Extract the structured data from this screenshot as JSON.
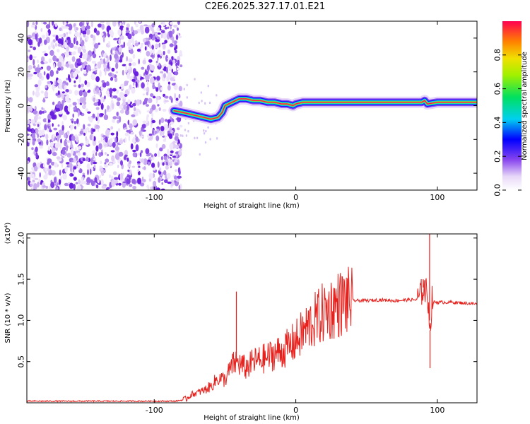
{
  "title": "C2E6.2025.327.17.01.E21",
  "chart_data": [
    {
      "type": "heatmap",
      "xlabel": "Height of straight line (km)",
      "ylabel": "Frequency (Hz)",
      "xlim": [
        -190,
        128
      ],
      "ylim": [
        -50,
        50
      ],
      "xticks": [
        -100,
        0,
        100
      ],
      "xtick_labels": [
        "-100",
        "0",
        "100"
      ],
      "yticks": [
        -40,
        -20,
        0,
        20,
        40
      ],
      "ytick_labels": [
        "-40",
        "-20",
        "0",
        "20",
        "40"
      ],
      "noise_region_x": [
        -190,
        -84
      ],
      "signal_track": {
        "x": [
          -86,
          -80,
          -75,
          -70,
          -65,
          -60,
          -55,
          -52,
          -50,
          -45,
          -40,
          -35,
          -30,
          -25,
          -20,
          -15,
          -10,
          -6,
          -2,
          0,
          5,
          20,
          40,
          60,
          80,
          89,
          91,
          93,
          100,
          128
        ],
        "hz": [
          -3,
          -4,
          -5,
          -6,
          -7,
          -8,
          -7,
          -4,
          0,
          2,
          4,
          4,
          3,
          3,
          2,
          2,
          1,
          1,
          0,
          1,
          2,
          2,
          2,
          2,
          2,
          2,
          3,
          1,
          2,
          2
        ]
      },
      "colorbar": {
        "label": "Normalized spectral amplitude",
        "range": [
          0,
          1
        ],
        "ticks": [
          0.0,
          0.2,
          0.4,
          0.6,
          0.8
        ],
        "tick_labels": [
          "0.0",
          "0.2",
          "0.4",
          "0.6",
          "0.8"
        ]
      }
    },
    {
      "type": "line",
      "xlabel": "Height of straight line (km)",
      "ylabel": "SNR (10 * v/v)",
      "scale_label": "(x10⁴)",
      "xlim": [
        -190,
        128
      ],
      "ylim": [
        0,
        2.05
      ],
      "xticks": [
        -100,
        0,
        100
      ],
      "xtick_labels": [
        "-100",
        "0",
        "100"
      ],
      "yticks": [
        0.5,
        1.0,
        1.5,
        2.0
      ],
      "ytick_labels": [
        "0.5",
        "1.0",
        "1.5",
        "2.0"
      ],
      "series": [
        {
          "name": "SNR",
          "color": "#e8201c",
          "x": [
            -190,
            -150,
            -110,
            -85,
            -78,
            -74,
            -70,
            -65,
            -60,
            -55,
            -50,
            -45,
            -42,
            -38,
            -35,
            -30,
            -25,
            -20,
            -15,
            -10,
            -5,
            0,
            5,
            10,
            15,
            20,
            25,
            30,
            35,
            40,
            50,
            60,
            70,
            80,
            85,
            88,
            90,
            92,
            94,
            95,
            96,
            98,
            100,
            110,
            120,
            128
          ],
          "values": [
            0.02,
            0.02,
            0.02,
            0.02,
            0.04,
            0.1,
            0.12,
            0.15,
            0.2,
            0.3,
            0.28,
            0.45,
            0.5,
            0.45,
            0.42,
            0.5,
            0.52,
            0.55,
            0.6,
            0.62,
            0.68,
            0.75,
            0.85,
            0.95,
            1.02,
            1.1,
            1.15,
            1.2,
            1.22,
            1.24,
            1.24,
            1.25,
            1.24,
            1.25,
            1.25,
            1.3,
            1.4,
            1.35,
            1.2,
            0.8,
            1.25,
            1.22,
            1.22,
            1.22,
            1.21,
            1.2
          ]
        }
      ],
      "spikes": [
        {
          "x": -42,
          "value": 1.35
        },
        {
          "x": 94.5,
          "value": 2.05
        },
        {
          "x": 94.8,
          "value": 0.42
        },
        {
          "x": 90,
          "value": 1.5
        }
      ]
    }
  ]
}
